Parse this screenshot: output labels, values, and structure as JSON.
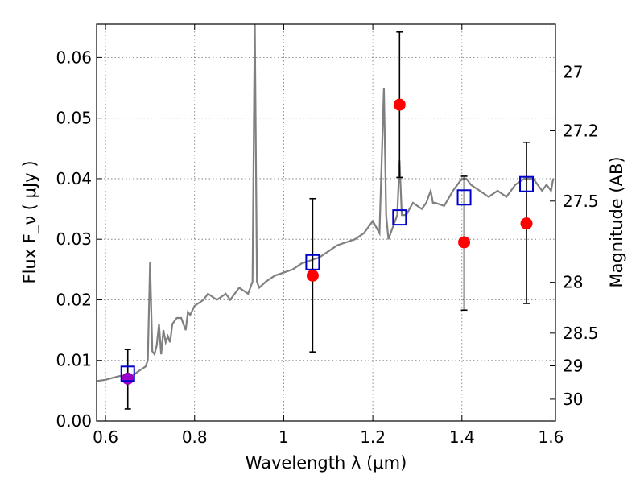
{
  "chart_data": {
    "type": "scatter",
    "xlabel": "Wavelength λ (μm)",
    "ylabel": "Flux F_ν ( μJy )",
    "y2label": "Magnitude (AB)",
    "xlim": [
      0.58,
      1.61
    ],
    "ylim": [
      0.0,
      0.0655
    ],
    "xticks": [
      "0.6",
      "0.8",
      "1",
      "1.2",
      "1.4",
      "1.6"
    ],
    "yticks": [
      "0.00",
      "0.01",
      "0.02",
      "0.03",
      "0.04",
      "0.05",
      "0.06"
    ],
    "y2ticks": [
      "27",
      "27.2",
      "27.5",
      "28",
      "28.5",
      "29",
      "30"
    ],
    "grid": true,
    "colors": {
      "spectrum": "#808080",
      "observed": "#ff0000",
      "model": "#0000cc",
      "overlap": "#9900cc",
      "errorbar": "#000000"
    },
    "series": [
      {
        "kind": "line",
        "x": [
          0.58,
          0.6,
          0.62,
          0.63,
          0.64,
          0.65,
          0.66,
          0.67,
          0.68,
          0.69,
          0.695,
          0.7,
          0.705,
          0.71,
          0.715,
          0.72,
          0.725,
          0.73,
          0.735,
          0.74,
          0.745,
          0.75,
          0.76,
          0.77,
          0.78,
          0.785,
          0.79,
          0.8,
          0.82,
          0.83,
          0.85,
          0.86,
          0.87,
          0.88,
          0.9,
          0.92,
          0.93,
          0.935,
          0.94,
          0.945,
          0.96,
          0.98,
          1.0,
          1.02,
          1.04,
          1.06,
          1.08,
          1.1,
          1.12,
          1.14,
          1.16,
          1.18,
          1.2,
          1.215,
          1.225,
          1.23,
          1.235,
          1.245,
          1.255,
          1.26,
          1.265,
          1.275,
          1.29,
          1.31,
          1.32,
          1.33,
          1.335,
          1.34,
          1.36,
          1.38,
          1.4,
          1.41,
          1.42,
          1.44,
          1.46,
          1.48,
          1.5,
          1.52,
          1.54,
          1.56,
          1.58,
          1.59,
          1.6,
          1.605
        ],
        "y": [
          0.0066,
          0.0068,
          0.0072,
          0.0074,
          0.0075,
          0.0073,
          0.0074,
          0.008,
          0.0085,
          0.009,
          0.01,
          0.0262,
          0.0115,
          0.011,
          0.0125,
          0.016,
          0.011,
          0.015,
          0.013,
          0.014,
          0.013,
          0.016,
          0.017,
          0.017,
          0.015,
          0.018,
          0.0175,
          0.019,
          0.02,
          0.021,
          0.02,
          0.0205,
          0.021,
          0.02,
          0.022,
          0.021,
          0.023,
          0.066,
          0.023,
          0.022,
          0.023,
          0.024,
          0.0245,
          0.025,
          0.026,
          0.0265,
          0.027,
          0.028,
          0.029,
          0.0295,
          0.03,
          0.031,
          0.033,
          0.031,
          0.055,
          0.034,
          0.03,
          0.032,
          0.034,
          0.043,
          0.034,
          0.034,
          0.036,
          0.035,
          0.036,
          0.038,
          0.036,
          0.036,
          0.0355,
          0.038,
          0.04,
          0.04,
          0.039,
          0.038,
          0.037,
          0.038,
          0.037,
          0.039,
          0.04,
          0.04,
          0.038,
          0.039,
          0.038,
          0.04
        ]
      },
      {
        "kind": "observed",
        "x": [
          0.65,
          1.065,
          1.26,
          1.405,
          1.545
        ],
        "y": [
          0.007,
          0.024,
          0.0522,
          0.0295,
          0.0326
        ],
        "yerr_low": [
          0.002,
          0.0114,
          0.0402,
          0.0183,
          0.0194
        ],
        "yerr_high": [
          0.0118,
          0.0367,
          0.0642,
          0.0404,
          0.046
        ]
      },
      {
        "kind": "model",
        "x": [
          0.65,
          1.065,
          1.26,
          1.405,
          1.545
        ],
        "y": [
          0.0078,
          0.0262,
          0.0336,
          0.0369,
          0.0391
        ]
      }
    ],
    "y2_tick_flux": [
      0.0576,
      0.0479,
      0.0363,
      0.0229,
      0.0145,
      0.0091,
      0.0036
    ]
  }
}
